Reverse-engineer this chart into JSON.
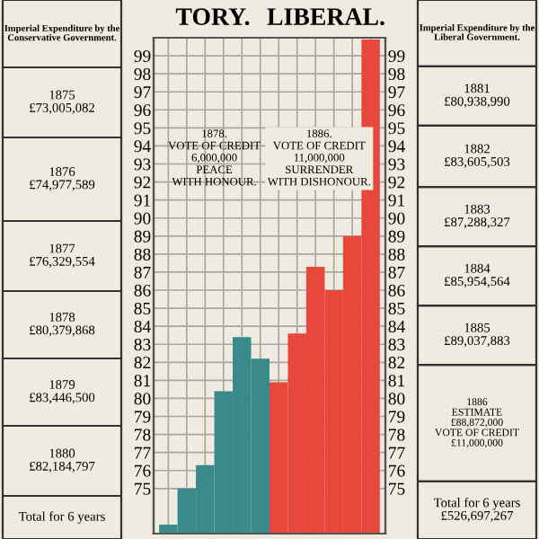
{
  "chart_data": {
    "type": "bar",
    "categories": [
      null,
      null,
      null,
      null,
      null,
      null,
      null,
      null,
      null,
      null,
      null,
      null
    ],
    "values": [
      73.0,
      75.0,
      76.3,
      80.4,
      83.4,
      82.2,
      80.9,
      83.6,
      87.3,
      86.0,
      89.0,
      99.9
    ],
    "colors": [
      "#3a8a8c",
      "#3a8a8c",
      "#3a8a8c",
      "#3a8a8c",
      "#3a8a8c",
      "#3a8a8c",
      "#e8473b",
      "#e8473b",
      "#e8473b",
      "#e8473b",
      "#e8473b",
      "#e8473b"
    ],
    "ylim": [
      72.5,
      100
    ],
    "yticks": [
      75,
      76,
      77,
      78,
      79,
      80,
      81,
      82,
      83,
      84,
      85,
      86,
      87,
      88,
      89,
      90,
      91,
      92,
      93,
      94,
      95,
      96,
      97,
      98,
      99
    ],
    "y2lim": [
      72.5,
      100
    ],
    "y2ticks": [
      75,
      76,
      77,
      78,
      79,
      80,
      81,
      82,
      83,
      84,
      85,
      86,
      87,
      88,
      89,
      90,
      91,
      92,
      93,
      94,
      95,
      96,
      97,
      98,
      99
    ],
    "grid": true,
    "annotations": [
      "Imperial Expenditure by the Conservative Government.",
      "1875\n£73,005,082",
      "1876\n£74,977,589",
      "1877\n£76,329,554",
      "1878\n£80,379,868",
      "1879\n£83,446,500",
      "1880\n£82,184,797",
      "Total for 6 years",
      "Imperial Expenditure by the Liberal Government.",
      "1881\n£80,938,990",
      "1882\n£83,605,503",
      "1883\n£87,288,327",
      "1884\n£85,954,564",
      "1885\n£89,037,883",
      "1886\nESTIMATE\n£88,872,000\nVOTE OF CREDIT\n£11,000,000",
      "Total for 6 years\n£526,697,267",
      "1878.\nVOTE OF CREDIT\n6,000,000\nPEACE\nWITH HONOUR.",
      "1886.\nVOTE OF CREDIT\n11,000,000\nSURRENDER\nWITH DISHONOUR.",
      "TORY.",
      "LIBERAL."
    ]
  }
}
